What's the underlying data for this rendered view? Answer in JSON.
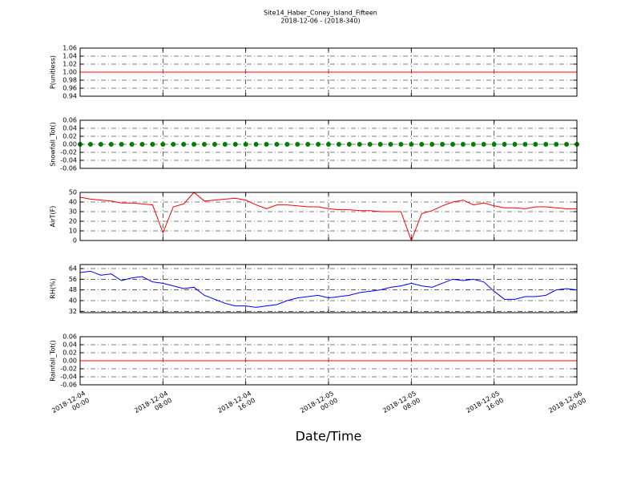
{
  "title": "Site14_Haber_Coney_Island_Fifteen",
  "subtitle": "2018-12-06 - (2018-340)",
  "xlabel": "Date/Time",
  "chart_data": [
    {
      "type": "line",
      "ylabel": "P(unitless)",
      "ylim": [
        0.94,
        1.06
      ],
      "yticks": [
        0.94,
        0.96,
        0.98,
        {
          "value": 1.0,
          "label": "1.00"
        },
        1.02,
        1.04,
        1.06
      ],
      "grid": true,
      "xlim": [
        "2018-12-04 00:00",
        "2018-12-06 00:00"
      ],
      "x": [
        "2018-12-04 00:00",
        "2018-12-04 01:00",
        "2018-12-04 02:00",
        "2018-12-04 03:00",
        "2018-12-04 04:00",
        "2018-12-04 05:00",
        "2018-12-04 06:00",
        "2018-12-04 07:00",
        "2018-12-04 08:00",
        "2018-12-04 09:00",
        "2018-12-04 10:00",
        "2018-12-04 11:00",
        "2018-12-04 12:00",
        "2018-12-04 13:00",
        "2018-12-04 14:00",
        "2018-12-04 15:00",
        "2018-12-04 16:00",
        "2018-12-04 17:00",
        "2018-12-04 18:00",
        "2018-12-04 19:00",
        "2018-12-04 20:00",
        "2018-12-04 21:00",
        "2018-12-04 22:00",
        "2018-12-04 23:00",
        "2018-12-05 00:00",
        "2018-12-05 01:00",
        "2018-12-05 02:00",
        "2018-12-05 03:00",
        "2018-12-05 04:00",
        "2018-12-05 05:00",
        "2018-12-05 06:00",
        "2018-12-05 07:00",
        "2018-12-05 08:00",
        "2018-12-05 09:00",
        "2018-12-05 10:00",
        "2018-12-05 11:00",
        "2018-12-05 12:00",
        "2018-12-05 13:00",
        "2018-12-05 14:00",
        "2018-12-05 15:00",
        "2018-12-05 16:00",
        "2018-12-05 17:00",
        "2018-12-05 18:00",
        "2018-12-05 19:00",
        "2018-12-05 20:00",
        "2018-12-05 21:00",
        "2018-12-05 22:00",
        "2018-12-05 23:00",
        "2018-12-06 00:00"
      ],
      "color": "#ff0000",
      "values": [
        1,
        1,
        1,
        1,
        1,
        1,
        1,
        1,
        1,
        1,
        1,
        1,
        1,
        1,
        1,
        1,
        1,
        1,
        1,
        1,
        1,
        1,
        1,
        1,
        1,
        1,
        1,
        1,
        1,
        1,
        1,
        1,
        1,
        1,
        1,
        1,
        1,
        1,
        1,
        1,
        1,
        1,
        1,
        1,
        1,
        1,
        1,
        1,
        1
      ]
    },
    {
      "type": "scatter",
      "ylabel": "Snowfall_Tot()",
      "ylim": [
        -0.06,
        0.06
      ],
      "yticks": [
        -0.06,
        -0.04,
        -0.02,
        {
          "value": 0,
          "label": "0.00"
        },
        0.02,
        0.04,
        0.06
      ],
      "grid": true,
      "xlim": [
        "2018-12-04 00:00",
        "2018-12-06 00:00"
      ],
      "x": [
        "2018-12-04 00:00",
        "2018-12-04 01:00",
        "2018-12-04 02:00",
        "2018-12-04 03:00",
        "2018-12-04 04:00",
        "2018-12-04 05:00",
        "2018-12-04 06:00",
        "2018-12-04 07:00",
        "2018-12-04 08:00",
        "2018-12-04 09:00",
        "2018-12-04 10:00",
        "2018-12-04 11:00",
        "2018-12-04 12:00",
        "2018-12-04 13:00",
        "2018-12-04 14:00",
        "2018-12-04 15:00",
        "2018-12-04 16:00",
        "2018-12-04 17:00",
        "2018-12-04 18:00",
        "2018-12-04 19:00",
        "2018-12-04 20:00",
        "2018-12-04 21:00",
        "2018-12-04 22:00",
        "2018-12-04 23:00",
        "2018-12-05 00:00",
        "2018-12-05 01:00",
        "2018-12-05 02:00",
        "2018-12-05 03:00",
        "2018-12-05 04:00",
        "2018-12-05 05:00",
        "2018-12-05 06:00",
        "2018-12-05 07:00",
        "2018-12-05 08:00",
        "2018-12-05 09:00",
        "2018-12-05 10:00",
        "2018-12-05 11:00",
        "2018-12-05 12:00",
        "2018-12-05 13:00",
        "2018-12-05 14:00",
        "2018-12-05 15:00",
        "2018-12-05 16:00",
        "2018-12-05 17:00",
        "2018-12-05 18:00",
        "2018-12-05 19:00",
        "2018-12-05 20:00",
        "2018-12-05 21:00",
        "2018-12-05 22:00",
        "2018-12-05 23:00",
        "2018-12-06 00:00"
      ],
      "color": "#008000",
      "values": [
        0,
        0,
        0,
        0,
        0,
        0,
        0,
        0,
        0,
        0,
        0,
        0,
        0,
        0,
        0,
        0,
        0,
        0,
        0,
        0,
        0,
        0,
        0,
        0,
        0,
        0,
        0,
        0,
        0,
        0,
        0,
        0,
        0,
        0,
        0,
        0,
        0,
        0,
        0,
        0,
        0,
        0,
        0,
        0,
        0,
        0,
        0,
        0,
        0
      ]
    },
    {
      "type": "line",
      "ylabel": "AirT(F)",
      "ylim": [
        0,
        50
      ],
      "yticks": [
        0,
        10,
        20,
        30,
        40,
        50
      ],
      "grid": true,
      "xlim": [
        "2018-12-04 00:00",
        "2018-12-06 00:00"
      ],
      "x": [
        "2018-12-04 00:00",
        "2018-12-04 01:00",
        "2018-12-04 02:00",
        "2018-12-04 03:00",
        "2018-12-04 04:00",
        "2018-12-04 05:00",
        "2018-12-04 06:00",
        "2018-12-04 07:00",
        "2018-12-04 08:00",
        "2018-12-04 09:00",
        "2018-12-04 10:00",
        "2018-12-04 11:00",
        "2018-12-04 12:00",
        "2018-12-04 13:00",
        "2018-12-04 14:00",
        "2018-12-04 15:00",
        "2018-12-04 16:00",
        "2018-12-04 17:00",
        "2018-12-04 18:00",
        "2018-12-04 19:00",
        "2018-12-04 20:00",
        "2018-12-04 21:00",
        "2018-12-04 22:00",
        "2018-12-04 23:00",
        "2018-12-05 00:00",
        "2018-12-05 01:00",
        "2018-12-05 02:00",
        "2018-12-05 03:00",
        "2018-12-05 04:00",
        "2018-12-05 05:00",
        "2018-12-05 06:00",
        "2018-12-05 07:00",
        "2018-12-05 08:00",
        "2018-12-05 09:00",
        "2018-12-05 10:00",
        "2018-12-05 11:00",
        "2018-12-05 12:00",
        "2018-12-05 13:00",
        "2018-12-05 14:00",
        "2018-12-05 15:00",
        "2018-12-05 16:00",
        "2018-12-05 17:00",
        "2018-12-05 18:00",
        "2018-12-05 19:00",
        "2018-12-05 20:00",
        "2018-12-05 21:00",
        "2018-12-05 22:00",
        "2018-12-05 23:00",
        "2018-12-06 00:00"
      ],
      "color": "#ff0000",
      "values": [
        45,
        43,
        42,
        41,
        39,
        39,
        38,
        37,
        8,
        35,
        38,
        50,
        41,
        42,
        43,
        44,
        42,
        37,
        33,
        37,
        37,
        36,
        35,
        35,
        33,
        32,
        32,
        31,
        31,
        30,
        30,
        30,
        0,
        28,
        31,
        36,
        40,
        42,
        37,
        39,
        36,
        34,
        34,
        33,
        35,
        35,
        34,
        33,
        33
      ]
    },
    {
      "type": "line",
      "ylabel": "RH(%)",
      "ylim": [
        31,
        67
      ],
      "yticks": [
        32,
        40,
        48,
        56,
        64
      ],
      "grid": true,
      "xlim": [
        "2018-12-04 00:00",
        "2018-12-06 00:00"
      ],
      "x": [
        "2018-12-04 00:00",
        "2018-12-04 01:00",
        "2018-12-04 02:00",
        "2018-12-04 03:00",
        "2018-12-04 04:00",
        "2018-12-04 05:00",
        "2018-12-04 06:00",
        "2018-12-04 07:00",
        "2018-12-04 08:00",
        "2018-12-04 09:00",
        "2018-12-04 10:00",
        "2018-12-04 11:00",
        "2018-12-04 12:00",
        "2018-12-04 13:00",
        "2018-12-04 14:00",
        "2018-12-04 15:00",
        "2018-12-04 16:00",
        "2018-12-04 17:00",
        "2018-12-04 18:00",
        "2018-12-04 19:00",
        "2018-12-04 20:00",
        "2018-12-04 21:00",
        "2018-12-04 22:00",
        "2018-12-04 23:00",
        "2018-12-05 00:00",
        "2018-12-05 01:00",
        "2018-12-05 02:00",
        "2018-12-05 03:00",
        "2018-12-05 04:00",
        "2018-12-05 05:00",
        "2018-12-05 06:00",
        "2018-12-05 07:00",
        "2018-12-05 08:00",
        "2018-12-05 09:00",
        "2018-12-05 10:00",
        "2018-12-05 11:00",
        "2018-12-05 12:00",
        "2018-12-05 13:00",
        "2018-12-05 14:00",
        "2018-12-05 15:00",
        "2018-12-05 16:00",
        "2018-12-05 17:00",
        "2018-12-05 18:00",
        "2018-12-05 19:00",
        "2018-12-05 20:00",
        "2018-12-05 21:00",
        "2018-12-05 22:00",
        "2018-12-05 23:00",
        "2018-12-06 00:00"
      ],
      "color": "#0000ff",
      "values": [
        61,
        62,
        59,
        60,
        55,
        57,
        58,
        54,
        53,
        51,
        49,
        50,
        44,
        41,
        38,
        36,
        36,
        35,
        36,
        37,
        40,
        42,
        43,
        44,
        42,
        43,
        44,
        46,
        47,
        48,
        50,
        51,
        53,
        51,
        50,
        53,
        56,
        55,
        56,
        54,
        47,
        41,
        41,
        43,
        43,
        44,
        48,
        49,
        48
      ]
    },
    {
      "type": "line",
      "ylabel": "Rainfall_Tot()",
      "ylim": [
        -0.06,
        0.06
      ],
      "yticks": [
        -0.06,
        -0.04,
        -0.02,
        {
          "value": 0,
          "label": "0.00"
        },
        0.02,
        0.04,
        0.06
      ],
      "grid": true,
      "xlim": [
        "2018-12-04 00:00",
        "2018-12-06 00:00"
      ],
      "xticks": [
        {
          "value": "2018-12-04 00:00",
          "label": "2018-12-04\n00:00"
        },
        {
          "value": "2018-12-04 08:00",
          "label": "2018-12-04\n08:00"
        },
        {
          "value": "2018-12-04 16:00",
          "label": "2018-12-04\n16:00"
        },
        {
          "value": "2018-12-05 00:00",
          "label": "2018-12-05\n00:00"
        },
        {
          "value": "2018-12-05 08:00",
          "label": "2018-12-05\n08:00"
        },
        {
          "value": "2018-12-05 16:00",
          "label": "2018-12-05\n16:00"
        },
        {
          "value": "2018-12-06 00:00",
          "label": "2018-12-06\n00:00"
        }
      ],
      "x": [
        "2018-12-04 00:00",
        "2018-12-04 01:00",
        "2018-12-04 02:00",
        "2018-12-04 03:00",
        "2018-12-04 04:00",
        "2018-12-04 05:00",
        "2018-12-04 06:00",
        "2018-12-04 07:00",
        "2018-12-04 08:00",
        "2018-12-04 09:00",
        "2018-12-04 10:00",
        "2018-12-04 11:00",
        "2018-12-04 12:00",
        "2018-12-04 13:00",
        "2018-12-04 14:00",
        "2018-12-04 15:00",
        "2018-12-04 16:00",
        "2018-12-04 17:00",
        "2018-12-04 18:00",
        "2018-12-04 19:00",
        "2018-12-04 20:00",
        "2018-12-04 21:00",
        "2018-12-04 22:00",
        "2018-12-04 23:00",
        "2018-12-05 00:00",
        "2018-12-05 01:00",
        "2018-12-05 02:00",
        "2018-12-05 03:00",
        "2018-12-05 04:00",
        "2018-12-05 05:00",
        "2018-12-05 06:00",
        "2018-12-05 07:00",
        "2018-12-05 08:00",
        "2018-12-05 09:00",
        "2018-12-05 10:00",
        "2018-12-05 11:00",
        "2018-12-05 12:00",
        "2018-12-05 13:00",
        "2018-12-05 14:00",
        "2018-12-05 15:00",
        "2018-12-05 16:00",
        "2018-12-05 17:00",
        "2018-12-05 18:00",
        "2018-12-05 19:00",
        "2018-12-05 20:00",
        "2018-12-05 21:00",
        "2018-12-05 22:00",
        "2018-12-05 23:00",
        "2018-12-06 00:00"
      ],
      "color": "#ff0000",
      "values": [
        0,
        0,
        0,
        0,
        0,
        0,
        0,
        0,
        0,
        0,
        0,
        0,
        0,
        0,
        0,
        0,
        0,
        0,
        0,
        0,
        0,
        0,
        0,
        0,
        0,
        0,
        0,
        0,
        0,
        0,
        0,
        0,
        0,
        0,
        0,
        0,
        0,
        0,
        0,
        0,
        0,
        0,
        0,
        0,
        0,
        0,
        0,
        0,
        0
      ]
    }
  ]
}
